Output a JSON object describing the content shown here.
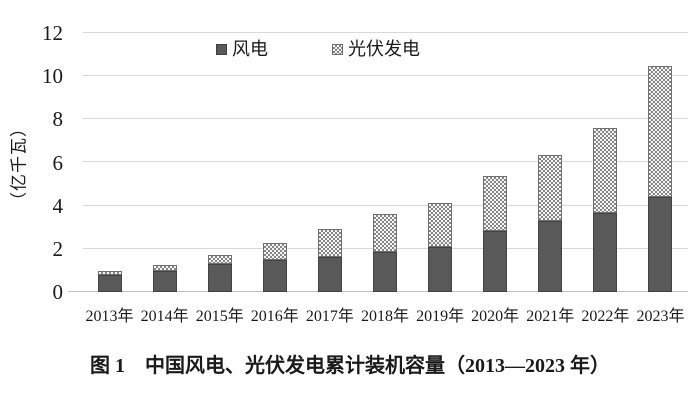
{
  "figure": {
    "caption": "图 1　中国风电、光伏发电累计装机容量（2013—2023 年）"
  },
  "chart_data": {
    "type": "bar",
    "stacked": true,
    "title": "",
    "xlabel": "",
    "ylabel": "（亿千瓦）",
    "ylim": [
      0,
      12
    ],
    "yticks": [
      0,
      2,
      4,
      6,
      8,
      10,
      12
    ],
    "grid": true,
    "legend_position": "top-center",
    "categories": [
      "2013年",
      "2014年",
      "2015年",
      "2016年",
      "2017年",
      "2018年",
      "2019年",
      "2020年",
      "2021年",
      "2022年",
      "2023年"
    ],
    "series": [
      {
        "name": "风电",
        "pattern": "solid",
        "color": "#595959",
        "values": [
          0.77,
          0.96,
          1.31,
          1.49,
          1.64,
          1.84,
          2.1,
          2.82,
          3.28,
          3.65,
          4.41
        ]
      },
      {
        "name": "光伏发电",
        "pattern": "checker",
        "color_fg": "#868686",
        "color_bg": "#f4f4f4",
        "values": [
          0.19,
          0.28,
          0.43,
          0.77,
          1.3,
          1.74,
          2.04,
          2.53,
          3.06,
          3.93,
          6.09
        ]
      }
    ]
  },
  "colors": {
    "background": "#ffffff",
    "gridline": "#d9d9d9",
    "axis_line": "#c0c0c0",
    "text": "#1a1a1a"
  }
}
